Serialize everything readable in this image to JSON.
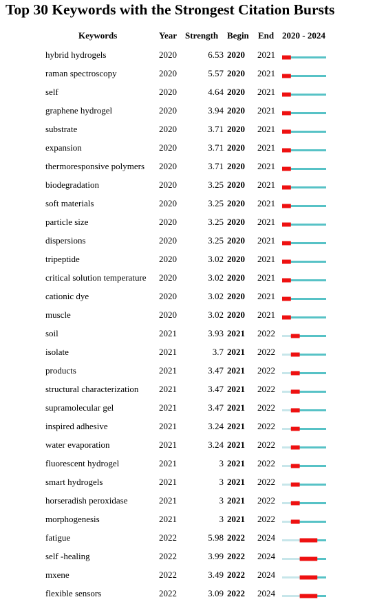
{
  "title": "Top 30 Keywords with the Strongest Citation Bursts",
  "headers": {
    "keywords": "Keywords",
    "year": "Year",
    "strength": "Strength",
    "begin": "Begin",
    "end": "End",
    "range": "2020 - 2024"
  },
  "colors": {
    "burst": "#ee1111",
    "active": "#57c2c6",
    "inactive": "#c7e6ea"
  },
  "chart_data": {
    "type": "table",
    "title": "Top 30 Keywords with the Strongest Citation Bursts",
    "range": [
      2020,
      2024
    ],
    "rows": [
      {
        "keyword": "hybrid hydrogels",
        "year": 2020,
        "strength": "6.53",
        "begin": 2020,
        "end": 2021
      },
      {
        "keyword": "raman spectroscopy",
        "year": 2020,
        "strength": "5.57",
        "begin": 2020,
        "end": 2021
      },
      {
        "keyword": "self",
        "year": 2020,
        "strength": "4.64",
        "begin": 2020,
        "end": 2021
      },
      {
        "keyword": "graphene hydrogel",
        "year": 2020,
        "strength": "3.94",
        "begin": 2020,
        "end": 2021
      },
      {
        "keyword": "substrate",
        "year": 2020,
        "strength": "3.71",
        "begin": 2020,
        "end": 2021
      },
      {
        "keyword": "expansion",
        "year": 2020,
        "strength": "3.71",
        "begin": 2020,
        "end": 2021
      },
      {
        "keyword": "thermoresponsive polymers",
        "year": 2020,
        "strength": "3.71",
        "begin": 2020,
        "end": 2021
      },
      {
        "keyword": "biodegradation",
        "year": 2020,
        "strength": "3.25",
        "begin": 2020,
        "end": 2021
      },
      {
        "keyword": "soft materials",
        "year": 2020,
        "strength": "3.25",
        "begin": 2020,
        "end": 2021
      },
      {
        "keyword": "particle size",
        "year": 2020,
        "strength": "3.25",
        "begin": 2020,
        "end": 2021
      },
      {
        "keyword": "dispersions",
        "year": 2020,
        "strength": "3.25",
        "begin": 2020,
        "end": 2021
      },
      {
        "keyword": "tripeptide",
        "year": 2020,
        "strength": "3.02",
        "begin": 2020,
        "end": 2021
      },
      {
        "keyword": "critical solution temperature",
        "year": 2020,
        "strength": "3.02",
        "begin": 2020,
        "end": 2021
      },
      {
        "keyword": "cationic dye",
        "year": 2020,
        "strength": "3.02",
        "begin": 2020,
        "end": 2021
      },
      {
        "keyword": "muscle",
        "year": 2020,
        "strength": "3.02",
        "begin": 2020,
        "end": 2021
      },
      {
        "keyword": "soil",
        "year": 2021,
        "strength": "3.93",
        "begin": 2021,
        "end": 2022
      },
      {
        "keyword": "isolate",
        "year": 2021,
        "strength": "3.7",
        "begin": 2021,
        "end": 2022
      },
      {
        "keyword": "products",
        "year": 2021,
        "strength": "3.47",
        "begin": 2021,
        "end": 2022
      },
      {
        "keyword": "structural characterization",
        "year": 2021,
        "strength": "3.47",
        "begin": 2021,
        "end": 2022
      },
      {
        "keyword": "supramolecular gel",
        "year": 2021,
        "strength": "3.47",
        "begin": 2021,
        "end": 2022
      },
      {
        "keyword": "inspired adhesive",
        "year": 2021,
        "strength": "3.24",
        "begin": 2021,
        "end": 2022
      },
      {
        "keyword": "water evaporation",
        "year": 2021,
        "strength": "3.24",
        "begin": 2021,
        "end": 2022
      },
      {
        "keyword": "fluorescent hydrogel",
        "year": 2021,
        "strength": "3",
        "begin": 2021,
        "end": 2022
      },
      {
        "keyword": "smart hydrogels",
        "year": 2021,
        "strength": "3",
        "begin": 2021,
        "end": 2022
      },
      {
        "keyword": "horseradish peroxidase",
        "year": 2021,
        "strength": "3",
        "begin": 2021,
        "end": 2022
      },
      {
        "keyword": "morphogenesis",
        "year": 2021,
        "strength": "3",
        "begin": 2021,
        "end": 2022
      },
      {
        "keyword": "fatigue",
        "year": 2022,
        "strength": "5.98",
        "begin": 2022,
        "end": 2024
      },
      {
        "keyword": "self -healing",
        "year": 2022,
        "strength": "3.99",
        "begin": 2022,
        "end": 2024
      },
      {
        "keyword": "mxene",
        "year": 2022,
        "strength": "3.49",
        "begin": 2022,
        "end": 2024
      },
      {
        "keyword": "flexible sensors",
        "year": 2022,
        "strength": "3.09",
        "begin": 2022,
        "end": 2024
      }
    ]
  }
}
